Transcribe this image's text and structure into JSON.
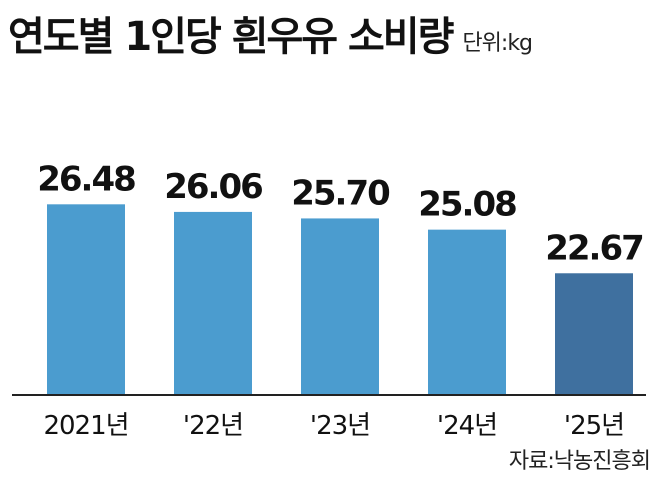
{
  "header": {
    "title": "연도별 1인당 흰우유 소비량",
    "unit": "단위:kg"
  },
  "source": "자료:낙농진흥회",
  "colors": {
    "bar": "#4b9ccf",
    "bar_highlight": "#3f709f",
    "axis": "#222222",
    "text": "#111111"
  },
  "chart_data": {
    "type": "bar",
    "title": "연도별 1인당 흰우유 소비량",
    "xlabel": "",
    "ylabel": "",
    "unit": "kg",
    "categories": [
      "2021년",
      "'22년",
      "'23년",
      "'24년",
      "'25년"
    ],
    "values": [
      26.48,
      26.06,
      25.7,
      25.08,
      22.67
    ],
    "value_labels": [
      "26.48",
      "26.06",
      "25.70",
      "25.08",
      "22.67"
    ],
    "highlight_index": 4,
    "grid": false,
    "legend": "none"
  }
}
